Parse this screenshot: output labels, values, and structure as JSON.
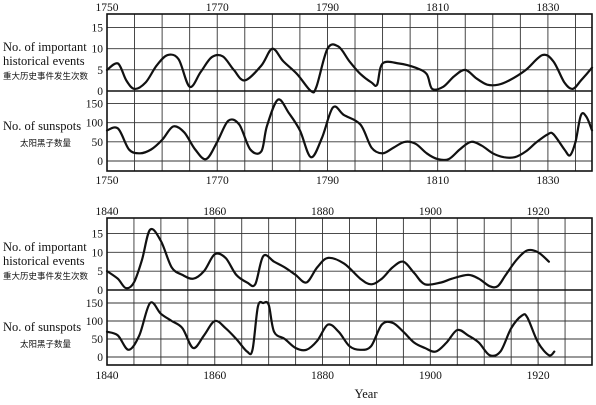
{
  "chart_data": [
    {
      "type": "line",
      "x_range": [
        1750,
        1838
      ],
      "x_ticks": [
        "1750",
        "1770",
        "1790",
        "1810",
        "1830"
      ],
      "xlabel": "",
      "series": [
        {
          "name": "No. of important historical events",
          "name_lines": [
            "No. of important",
            "historical events"
          ],
          "name_cn": "重大历史事件发生次数",
          "ylim": [
            0,
            17.5
          ],
          "y_ticks": [
            "15",
            "10",
            "5",
            "0"
          ],
          "points": [
            [
              1750,
              5
            ],
            [
              1752,
              6.5
            ],
            [
              1753.5,
              2.5
            ],
            [
              1755,
              0.5
            ],
            [
              1757,
              2
            ],
            [
              1759,
              6
            ],
            [
              1761,
              8.5
            ],
            [
              1763,
              7.5
            ],
            [
              1765,
              1
            ],
            [
              1767,
              4.5
            ],
            [
              1769,
              8
            ],
            [
              1771,
              8.2
            ],
            [
              1773,
              5
            ],
            [
              1775,
              2.5
            ],
            [
              1778,
              6
            ],
            [
              1780,
              10
            ],
            [
              1782,
              7
            ],
            [
              1784.5,
              4
            ],
            [
              1787,
              0
            ],
            [
              1788,
              1
            ],
            [
              1790,
              10
            ],
            [
              1792,
              10.5
            ],
            [
              1794,
              7
            ],
            [
              1796,
              4
            ],
            [
              1798,
              2
            ],
            [
              1799,
              1.5
            ],
            [
              1800,
              6.5
            ],
            [
              1803,
              6.5
            ],
            [
              1806,
              5.5
            ],
            [
              1808,
              4
            ],
            [
              1809,
              0.5
            ],
            [
              1811,
              1
            ],
            [
              1813,
              3.5
            ],
            [
              1815,
              5
            ],
            [
              1817,
              3
            ],
            [
              1819,
              1.5
            ],
            [
              1821,
              1.5
            ],
            [
              1823,
              2.5
            ],
            [
              1826,
              5
            ],
            [
              1829,
              8.5
            ],
            [
              1831,
              7
            ],
            [
              1833,
              2
            ],
            [
              1834.5,
              0.5
            ],
            [
              1836,
              2.5
            ],
            [
              1838,
              5.5
            ]
          ]
        },
        {
          "name": "No. of sunspots",
          "name_lines": [
            "No. of sunspots"
          ],
          "name_cn": "太阳黑子数量",
          "ylim": [
            0,
            175
          ],
          "y_ticks": [
            "150",
            "100",
            "50",
            "0"
          ],
          "points": [
            [
              1750,
              80
            ],
            [
              1752,
              85
            ],
            [
              1754,
              30
            ],
            [
              1756,
              20
            ],
            [
              1758,
              30
            ],
            [
              1760,
              55
            ],
            [
              1762,
              90
            ],
            [
              1764,
              75
            ],
            [
              1766,
              30
            ],
            [
              1768,
              5
            ],
            [
              1770,
              50
            ],
            [
              1772,
              105
            ],
            [
              1774,
              95
            ],
            [
              1776,
              30
            ],
            [
              1778,
              25
            ],
            [
              1779,
              90
            ],
            [
              1781,
              160
            ],
            [
              1783,
              125
            ],
            [
              1785,
              80
            ],
            [
              1787,
              10
            ],
            [
              1789,
              60
            ],
            [
              1791,
              140
            ],
            [
              1793,
              120
            ],
            [
              1796,
              95
            ],
            [
              1798,
              35
            ],
            [
              1800,
              20
            ],
            [
              1802,
              35
            ],
            [
              1804,
              50
            ],
            [
              1806,
              45
            ],
            [
              1808,
              20
            ],
            [
              1810,
              5
            ],
            [
              1812,
              5
            ],
            [
              1814,
              30
            ],
            [
              1816,
              50
            ],
            [
              1818,
              40
            ],
            [
              1820,
              20
            ],
            [
              1822,
              10
            ],
            [
              1824,
              10
            ],
            [
              1826,
              25
            ],
            [
              1828,
              50
            ],
            [
              1830,
              70
            ],
            [
              1831,
              70
            ],
            [
              1833,
              30
            ],
            [
              1834,
              15
            ],
            [
              1835,
              50
            ],
            [
              1836,
              120
            ],
            [
              1837,
              115
            ],
            [
              1838,
              80
            ]
          ]
        }
      ]
    },
    {
      "type": "line",
      "x_range": [
        1840,
        1930
      ],
      "x_ticks": [
        "1840",
        "1860",
        "1880",
        "1900",
        "1920"
      ],
      "xlabel": "Year",
      "series": [
        {
          "name": "No. of important historical events",
          "name_lines": [
            "No. of important",
            "historical events"
          ],
          "name_cn": "重大历史事件发生次数",
          "ylim": [
            0,
            17.5
          ],
          "y_ticks": [
            "15",
            "10",
            "5",
            "0"
          ],
          "points": [
            [
              1840,
              5
            ],
            [
              1842,
              3
            ],
            [
              1843.5,
              0.5
            ],
            [
              1845,
              2
            ],
            [
              1846.5,
              8
            ],
            [
              1848,
              16
            ],
            [
              1850,
              13
            ],
            [
              1852,
              6
            ],
            [
              1854,
              4
            ],
            [
              1856,
              3
            ],
            [
              1858,
              5
            ],
            [
              1860,
              9.5
            ],
            [
              1862,
              8.5
            ],
            [
              1864,
              4
            ],
            [
              1866,
              2
            ],
            [
              1867.5,
              1.5
            ],
            [
              1869,
              9
            ],
            [
              1871,
              7.5
            ],
            [
              1873,
              6
            ],
            [
              1875,
              4
            ],
            [
              1877,
              2
            ],
            [
              1879,
              6
            ],
            [
              1881,
              8.5
            ],
            [
              1884,
              7
            ],
            [
              1887,
              3
            ],
            [
              1889,
              1.5
            ],
            [
              1891,
              3
            ],
            [
              1893,
              6
            ],
            [
              1895,
              7.5
            ],
            [
              1897,
              4.5
            ],
            [
              1899,
              1.5
            ],
            [
              1902,
              2
            ],
            [
              1904,
              3
            ],
            [
              1907,
              4
            ],
            [
              1909,
              3
            ],
            [
              1911,
              1
            ],
            [
              1912.5,
              1
            ],
            [
              1914,
              4
            ],
            [
              1916,
              8
            ],
            [
              1918,
              10.5
            ],
            [
              1920,
              10
            ],
            [
              1922,
              7.5
            ]
          ]
        },
        {
          "name": "No. of sunspots",
          "name_lines": [
            "No. of sunspots"
          ],
          "name_cn": "太阳黑子数量",
          "ylim": [
            0,
            175
          ],
          "y_ticks": [
            "150",
            "100",
            "50",
            "0"
          ],
          "points": [
            [
              1840,
              70
            ],
            [
              1842,
              60
            ],
            [
              1844,
              20
            ],
            [
              1846,
              60
            ],
            [
              1848,
              150
            ],
            [
              1850,
              120
            ],
            [
              1852,
              100
            ],
            [
              1854,
              80
            ],
            [
              1856,
              25
            ],
            [
              1858,
              60
            ],
            [
              1860,
              100
            ],
            [
              1862,
              80
            ],
            [
              1864,
              50
            ],
            [
              1866,
              15
            ],
            [
              1867,
              20
            ],
            [
              1868,
              140
            ],
            [
              1869,
              150
            ],
            [
              1870,
              145
            ],
            [
              1871,
              70
            ],
            [
              1873,
              50
            ],
            [
              1875,
              25
            ],
            [
              1877,
              20
            ],
            [
              1879,
              45
            ],
            [
              1881,
              90
            ],
            [
              1883,
              70
            ],
            [
              1885,
              30
            ],
            [
              1887,
              20
            ],
            [
              1889,
              30
            ],
            [
              1891,
              90
            ],
            [
              1893,
              95
            ],
            [
              1895,
              70
            ],
            [
              1897,
              40
            ],
            [
              1899,
              25
            ],
            [
              1901,
              15
            ],
            [
              1903,
              40
            ],
            [
              1905,
              75
            ],
            [
              1907,
              60
            ],
            [
              1909,
              40
            ],
            [
              1911,
              5
            ],
            [
              1913,
              15
            ],
            [
              1915,
              80
            ],
            [
              1917,
              115
            ],
            [
              1918,
              110
            ],
            [
              1920,
              40
            ],
            [
              1922,
              5
            ],
            [
              1923,
              15
            ]
          ]
        }
      ]
    }
  ]
}
